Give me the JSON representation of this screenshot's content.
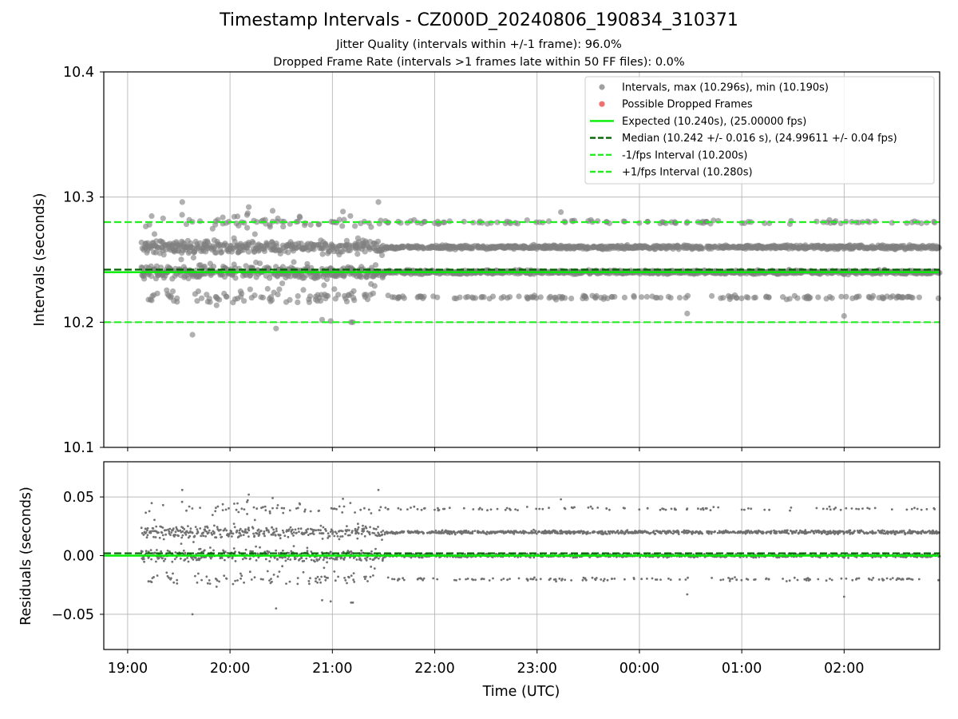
{
  "chart_data": [
    {
      "panel": "intervals",
      "type": "scatter",
      "title": "Timestamp Intervals - CZ000D_20240806_190834_310371",
      "subtitle_lines": [
        "Jitter Quality (intervals within +/-1 frame): 96.0%",
        "Dropped Frame Rate (intervals >1 frames late within 50 FF files): 0.0%"
      ],
      "ylabel": "Intervals (seconds)",
      "ylim": [
        10.1,
        10.4
      ],
      "yticks": [
        10.1,
        10.2,
        10.3,
        10.4
      ],
      "ytick_labels": [
        "10.1",
        "10.2",
        "10.3",
        "10.4"
      ],
      "xlim": [
        "18:46",
        "02:56"
      ],
      "grid": true,
      "legend_position": "top-right",
      "point_color": "#808080",
      "dropped_color": "#f08080",
      "expected_color": "#00ee00",
      "median_color": "#006400",
      "interval_color": "#22ee22",
      "legend": [
        {
          "label": "Intervals, max (10.296s), min (10.190s)",
          "kind": "dot",
          "color": "#a0a0a0"
        },
        {
          "label": "Possible Dropped Frames",
          "kind": "dot",
          "color": "#f07070"
        },
        {
          "label": "Expected (10.240s), (25.00000 fps)",
          "kind": "solid",
          "color": "#00ee00"
        },
        {
          "label": "Median (10.242 +/- 0.016 s), (24.99611 +/- 0.04 fps)",
          "kind": "dashed",
          "color": "#006400"
        },
        {
          "label": "-1/fps Interval (10.200s)",
          "kind": "dashed",
          "color": "#22ee22"
        },
        {
          "label": "+1/fps Interval (10.280s)",
          "kind": "dashed",
          "color": "#22ee22"
        }
      ],
      "reference_lines": {
        "expected": 10.24,
        "median": 10.242,
        "minus_interval": 10.2,
        "plus_interval": 10.28
      },
      "series": [
        {
          "name": "Intervals, max (10.296s), min (10.190s)",
          "start": "19:08",
          "end": "02:56",
          "count": 2750,
          "levels": [
            10.22,
            10.24,
            10.26,
            10.28
          ],
          "max": 10.296,
          "min": 10.19
        },
        {
          "name": "Possible Dropped Frames",
          "count": 0
        }
      ],
      "notable_points": [
        {
          "x": "19:38",
          "y": 10.19
        },
        {
          "x": "19:32",
          "y": 10.296
        },
        {
          "x": "21:27",
          "y": 10.296
        },
        {
          "x": "20:11",
          "y": 10.292
        },
        {
          "x": "20:25",
          "y": 10.289
        },
        {
          "x": "23:14",
          "y": 10.288
        },
        {
          "x": "20:27",
          "y": 10.195
        },
        {
          "x": "21:11",
          "y": 10.2
        },
        {
          "x": "21:12",
          "y": 10.2
        },
        {
          "x": "02:00",
          "y": 10.205
        },
        {
          "x": "20:59",
          "y": 10.201
        },
        {
          "x": "20:54",
          "y": 10.202
        },
        {
          "x": "00:28",
          "y": 10.207
        }
      ]
    },
    {
      "panel": "residuals",
      "type": "scatter",
      "xlabel": "Time (UTC)",
      "ylabel": "Residuals (seconds)",
      "ylim": [
        -0.08,
        0.08
      ],
      "yticks": [
        -0.05,
        0.0,
        0.05
      ],
      "ytick_labels": [
        "−0.05",
        "0.00",
        "0.05"
      ],
      "xticks": [
        "19:00",
        "20:00",
        "21:00",
        "22:00",
        "23:00",
        "00:00",
        "01:00",
        "02:00"
      ],
      "grid": true,
      "point_color": "#707070",
      "reference_lines": {
        "expected": 0.0,
        "median": 0.002
      },
      "series": [
        {
          "name": "Residuals",
          "start": "19:08",
          "end": "02:56",
          "count": 2750,
          "levels": [
            -0.02,
            0.0,
            0.02,
            0.04
          ],
          "max": 0.056,
          "min": -0.05
        }
      ]
    }
  ]
}
